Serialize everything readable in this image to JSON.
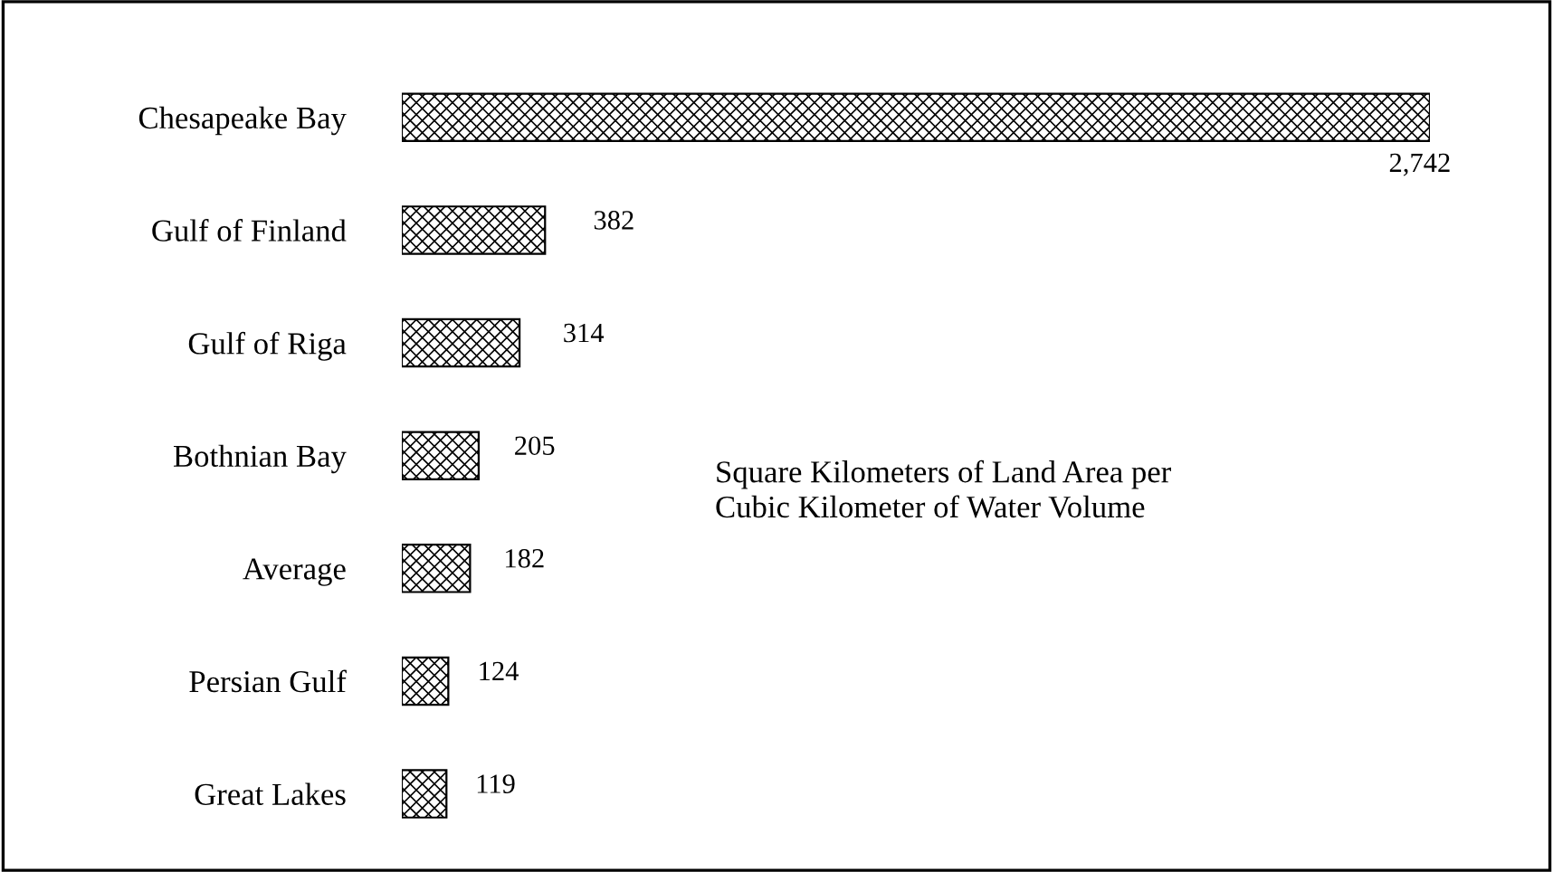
{
  "chart_data": {
    "type": "bar",
    "orientation": "horizontal",
    "categories": [
      "Chesapeake Bay",
      "Gulf of Finland",
      "Gulf of Riga",
      "Bothnian Bay",
      "Average",
      "Persian Gulf",
      "Great Lakes"
    ],
    "values": [
      2742,
      382,
      314,
      205,
      182,
      124,
      119
    ],
    "value_labels": [
      "2,742",
      "382",
      "314",
      "205",
      "182",
      "124",
      "119"
    ],
    "color": "#000000",
    "annotations": [
      "Square Kilometers of Land Area per\nCubic Kilometer of Water Volume"
    ],
    "grid": false,
    "legend": false
  }
}
